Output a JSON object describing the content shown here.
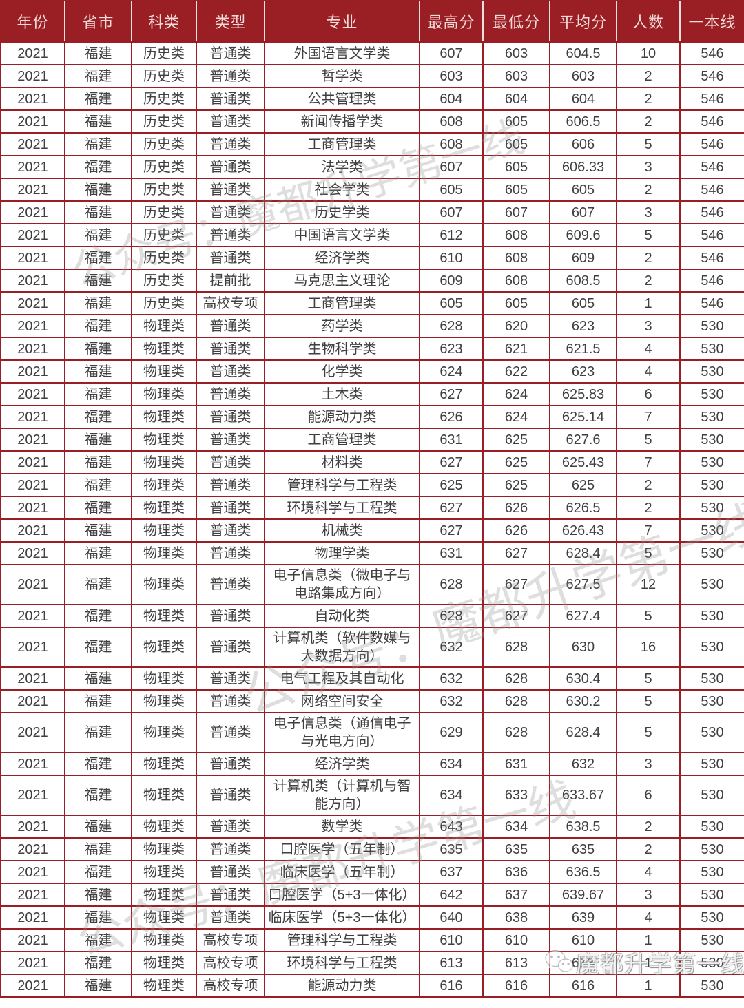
{
  "table": {
    "headers": [
      "年份",
      "省市",
      "科类",
      "类型",
      "专业",
      "最高分",
      "最低分",
      "平均分",
      "人数",
      "一本线"
    ],
    "rows": [
      [
        "2021",
        "福建",
        "历史类",
        "普通类",
        "外国语言文学类",
        "607",
        "603",
        "604.5",
        "10",
        "546"
      ],
      [
        "2021",
        "福建",
        "历史类",
        "普通类",
        "哲学类",
        "603",
        "603",
        "603",
        "2",
        "546"
      ],
      [
        "2021",
        "福建",
        "历史类",
        "普通类",
        "公共管理类",
        "604",
        "604",
        "604",
        "2",
        "546"
      ],
      [
        "2021",
        "福建",
        "历史类",
        "普通类",
        "新闻传播学类",
        "608",
        "605",
        "606.5",
        "2",
        "546"
      ],
      [
        "2021",
        "福建",
        "历史类",
        "普通类",
        "工商管理类",
        "608",
        "605",
        "606",
        "5",
        "546"
      ],
      [
        "2021",
        "福建",
        "历史类",
        "普通类",
        "法学类",
        "607",
        "605",
        "606.33",
        "3",
        "546"
      ],
      [
        "2021",
        "福建",
        "历史类",
        "普通类",
        "社会学类",
        "605",
        "605",
        "605",
        "2",
        "546"
      ],
      [
        "2021",
        "福建",
        "历史类",
        "普通类",
        "历史学类",
        "607",
        "607",
        "607",
        "3",
        "546"
      ],
      [
        "2021",
        "福建",
        "历史类",
        "普通类",
        "中国语言文学类",
        "612",
        "608",
        "609.6",
        "5",
        "546"
      ],
      [
        "2021",
        "福建",
        "历史类",
        "普通类",
        "经济学类",
        "610",
        "608",
        "609",
        "2",
        "546"
      ],
      [
        "2021",
        "福建",
        "历史类",
        "提前批",
        "马克思主义理论",
        "609",
        "608",
        "608.5",
        "2",
        "546"
      ],
      [
        "2021",
        "福建",
        "历史类",
        "高校专项",
        "工商管理类",
        "605",
        "605",
        "605",
        "1",
        "546"
      ],
      [
        "2021",
        "福建",
        "物理类",
        "普通类",
        "药学类",
        "628",
        "620",
        "623",
        "3",
        "530"
      ],
      [
        "2021",
        "福建",
        "物理类",
        "普通类",
        "生物科学类",
        "623",
        "621",
        "621.5",
        "4",
        "530"
      ],
      [
        "2021",
        "福建",
        "物理类",
        "普通类",
        "化学类",
        "624",
        "622",
        "623",
        "4",
        "530"
      ],
      [
        "2021",
        "福建",
        "物理类",
        "普通类",
        "土木类",
        "627",
        "624",
        "625.83",
        "6",
        "530"
      ],
      [
        "2021",
        "福建",
        "物理类",
        "普通类",
        "能源动力类",
        "626",
        "624",
        "625.14",
        "7",
        "530"
      ],
      [
        "2021",
        "福建",
        "物理类",
        "普通类",
        "工商管理类",
        "631",
        "625",
        "627.6",
        "5",
        "530"
      ],
      [
        "2021",
        "福建",
        "物理类",
        "普通类",
        "材料类",
        "627",
        "625",
        "625.43",
        "7",
        "530"
      ],
      [
        "2021",
        "福建",
        "物理类",
        "普通类",
        "管理科学与工程类",
        "625",
        "625",
        "625",
        "2",
        "530"
      ],
      [
        "2021",
        "福建",
        "物理类",
        "普通类",
        "环境科学与工程类",
        "627",
        "626",
        "626.5",
        "2",
        "530"
      ],
      [
        "2021",
        "福建",
        "物理类",
        "普通类",
        "机械类",
        "627",
        "626",
        "626.43",
        "7",
        "530"
      ],
      [
        "2021",
        "福建",
        "物理类",
        "普通类",
        "物理学类",
        "631",
        "627",
        "628.4",
        "5",
        "530"
      ],
      [
        "2021",
        "福建",
        "物理类",
        "普通类",
        "电子信息类（微电子与电路集成方向）",
        "628",
        "627",
        "627.5",
        "12",
        "530"
      ],
      [
        "2021",
        "福建",
        "物理类",
        "普通类",
        "自动化类",
        "628",
        "627",
        "627.4",
        "5",
        "530"
      ],
      [
        "2021",
        "福建",
        "物理类",
        "普通类",
        "计算机类（软件数媒与大数据方向）",
        "632",
        "628",
        "630",
        "16",
        "530"
      ],
      [
        "2021",
        "福建",
        "物理类",
        "普通类",
        "电气工程及其自动化",
        "632",
        "628",
        "630.4",
        "5",
        "530"
      ],
      [
        "2021",
        "福建",
        "物理类",
        "普通类",
        "网络空间安全",
        "632",
        "628",
        "630.2",
        "5",
        "530"
      ],
      [
        "2021",
        "福建",
        "物理类",
        "普通类",
        "电子信息类（通信电子与光电方向）",
        "629",
        "628",
        "628.4",
        "5",
        "530"
      ],
      [
        "2021",
        "福建",
        "物理类",
        "普通类",
        "经济学类",
        "634",
        "631",
        "632",
        "3",
        "530"
      ],
      [
        "2021",
        "福建",
        "物理类",
        "普通类",
        "计算机类（计算机与智能方向）",
        "634",
        "633",
        "633.67",
        "6",
        "530"
      ],
      [
        "2021",
        "福建",
        "物理类",
        "普通类",
        "数学类",
        "643",
        "634",
        "638.5",
        "2",
        "530"
      ],
      [
        "2021",
        "福建",
        "物理类",
        "普通类",
        "口腔医学（五年制）",
        "635",
        "635",
        "635",
        "2",
        "530"
      ],
      [
        "2021",
        "福建",
        "物理类",
        "普通类",
        "临床医学（五年制）",
        "637",
        "636",
        "636.5",
        "4",
        "530"
      ],
      [
        "2021",
        "福建",
        "物理类",
        "普通类",
        "口腔医学（5+3一体化）",
        "642",
        "637",
        "639.67",
        "3",
        "530"
      ],
      [
        "2021",
        "福建",
        "物理类",
        "普通类",
        "临床医学（5+3一体化）",
        "640",
        "638",
        "639",
        "4",
        "530"
      ],
      [
        "2021",
        "福建",
        "物理类",
        "高校专项",
        "管理科学与工程类",
        "610",
        "610",
        "610",
        "1",
        "530"
      ],
      [
        "2021",
        "福建",
        "物理类",
        "高校专项",
        "环境科学与工程类",
        "613",
        "613",
        "613",
        "1",
        "530"
      ],
      [
        "2021",
        "福建",
        "物理类",
        "高校专项",
        "能源动力类",
        "616",
        "616",
        "616",
        "1",
        "530"
      ]
    ]
  },
  "watermarks": {
    "diagonal_text": "公众号：魔都升学第一线",
    "badge_text": "魔都升学第一线"
  },
  "colors": {
    "header_bg": "#9A1F25",
    "header_text": "#F3DBDA",
    "grid_border": "#9A1F25",
    "body_text": "#3F3F3F",
    "watermark_gray": "#919191"
  }
}
